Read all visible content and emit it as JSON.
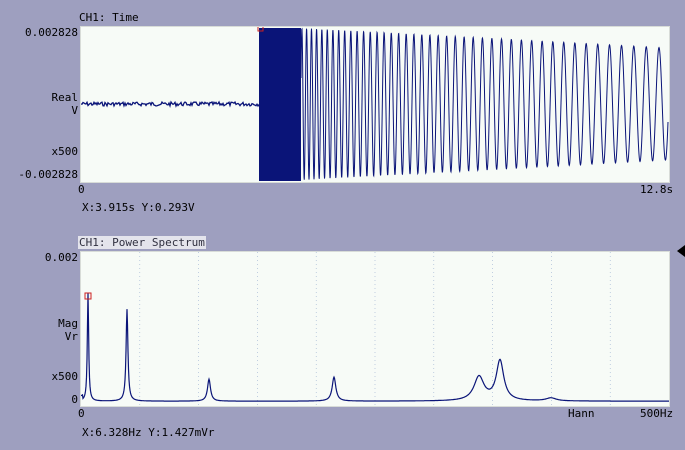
{
  "time_panel": {
    "title": "CH1: Time",
    "y_top": "0.002828",
    "y_unit_line1": "Real",
    "y_unit_line2": "V",
    "y_scale": "x500",
    "y_bottom": "-0.002828",
    "x_start": "0",
    "x_end": "12.8s",
    "cursor_readout": "X:3.915s Y:0.293V"
  },
  "spectrum_panel": {
    "title": "CH1: Power Spectrum",
    "y_top": "0.002",
    "y_unit_line1": "Mag",
    "y_unit_line2": "Vr",
    "y_scale": "x500",
    "y_bottom": "0",
    "x_start": "0",
    "window_label": "Hann",
    "x_end": "500Hz",
    "cursor_readout": "X:6.328Hz Y:1.427mVr"
  },
  "colors": {
    "background": "#9e9fbf",
    "plot_bg": "#f7fbf7",
    "trace": "#0a1478",
    "cursor_marker": "#cc2020",
    "grid": "#9bb0d0"
  }
}
